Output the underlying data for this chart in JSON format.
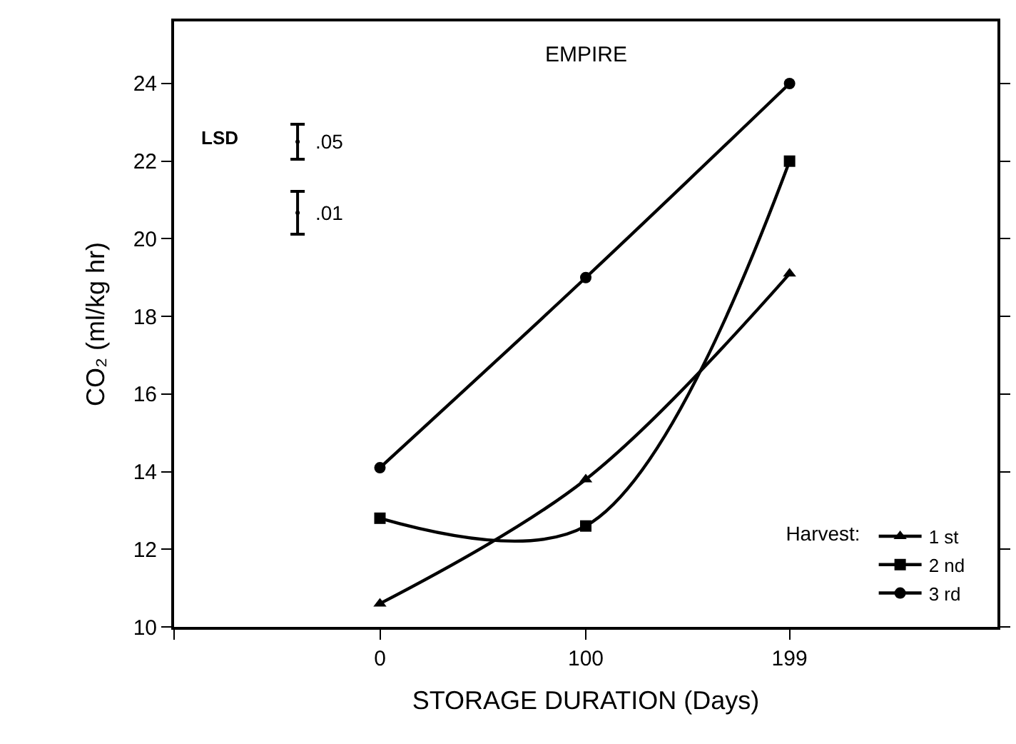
{
  "chart_data": {
    "type": "line",
    "title": "EMPIRE",
    "xlabel": "STORAGE DURATION (Days)",
    "ylabel": "CO₂ (ml/kg hr)",
    "legend_title": "Harvest:",
    "x": [
      0,
      100,
      199
    ],
    "xlim": [
      -100,
      300
    ],
    "xticks": [
      {
        "value": -100,
        "label": null
      },
      0,
      100,
      199
    ],
    "ylim": [
      10,
      25.6
    ],
    "yticks": [
      10,
      12,
      14,
      16,
      18,
      20,
      22,
      24
    ],
    "legend": "bottom right",
    "series": [
      {
        "name": "1 st",
        "color": "#000000",
        "values": [
          10.6,
          13.8,
          19.1
        ],
        "marker": "triangle"
      },
      {
        "name": "2 nd",
        "color": "#000000",
        "values": [
          12.8,
          12.6,
          22.0
        ],
        "marker": "square"
      },
      {
        "name": "3 rd",
        "color": "#000000",
        "values": [
          14.1,
          19.0,
          24.0
        ],
        "marker": "circle"
      },
      {
        "type": "scatter",
        "color": "#000000",
        "x": [
          -40,
          -40
        ],
        "values": [
          22.5,
          20.67
        ],
        "errors": [
          0.45,
          0.55
        ],
        "marker": "none"
      }
    ],
    "annotations": [
      "LSD",
      {
        "text": ".05",
        "x": -40,
        "y": 22.5
      },
      {
        "text": ".01",
        "x": -40,
        "y": 20.67
      }
    ]
  }
}
